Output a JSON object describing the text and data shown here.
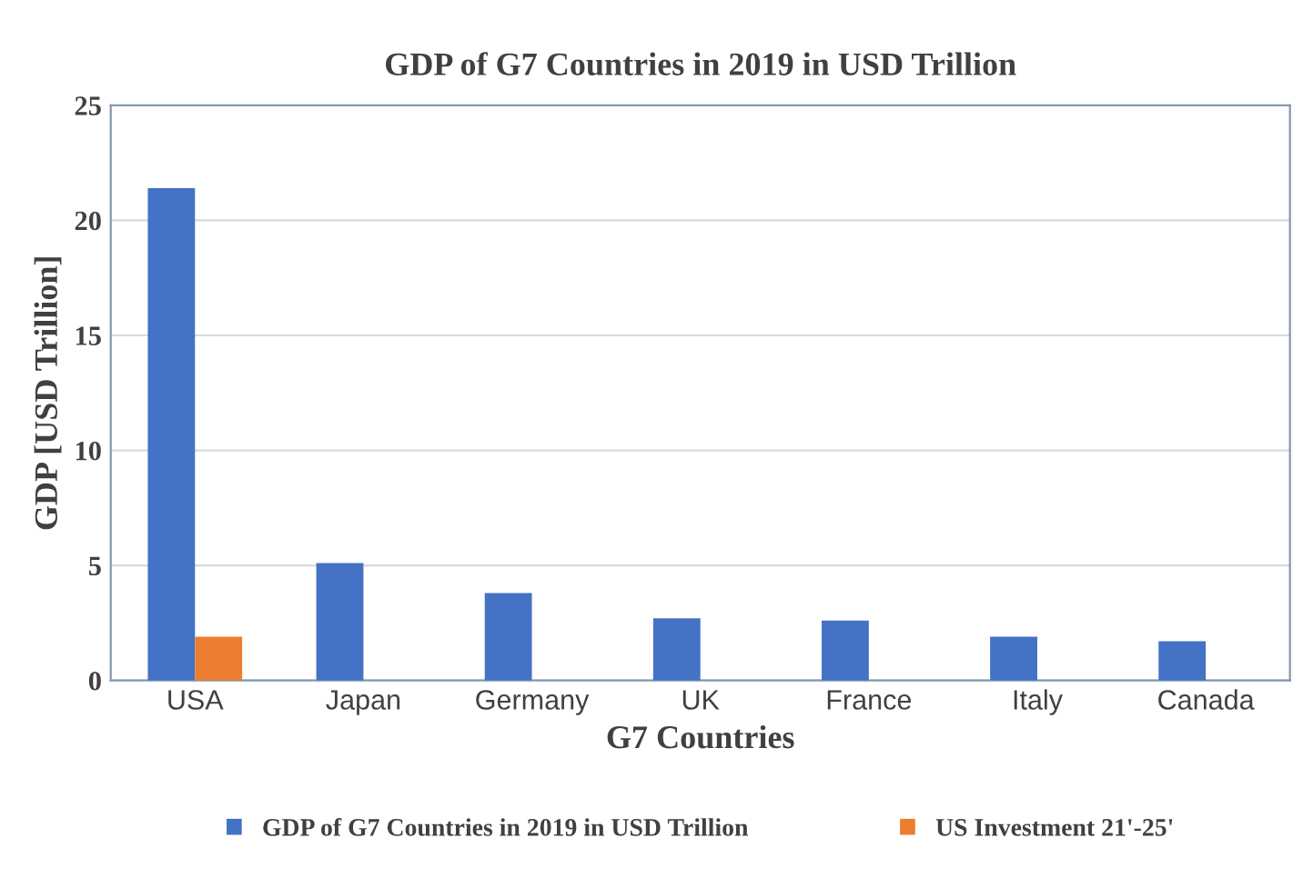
{
  "chart_data": {
    "type": "bar",
    "title": "GDP of G7 Countries in 2019 in USD Trillion",
    "xlabel": "G7 Countries",
    "ylabel": "GDP [USD Trillion]",
    "categories": [
      "USA",
      "Japan",
      "Germany",
      "UK",
      "France",
      "Italy",
      "Canada"
    ],
    "series": [
      {
        "name": "GDP of G7 Countries in 2019 in USD Trillion",
        "color": "#4472c4",
        "values": [
          21.4,
          5.1,
          3.8,
          2.7,
          2.6,
          1.9,
          1.7
        ]
      },
      {
        "name": "US Investment 21'-25'",
        "color": "#ed7d31",
        "values": [
          1.9,
          null,
          null,
          null,
          null,
          null,
          null
        ]
      }
    ],
    "ylim": [
      0,
      25
    ],
    "yticks": [
      0,
      5,
      10,
      15,
      20,
      25
    ],
    "grid": "y",
    "legend": "bottom"
  }
}
